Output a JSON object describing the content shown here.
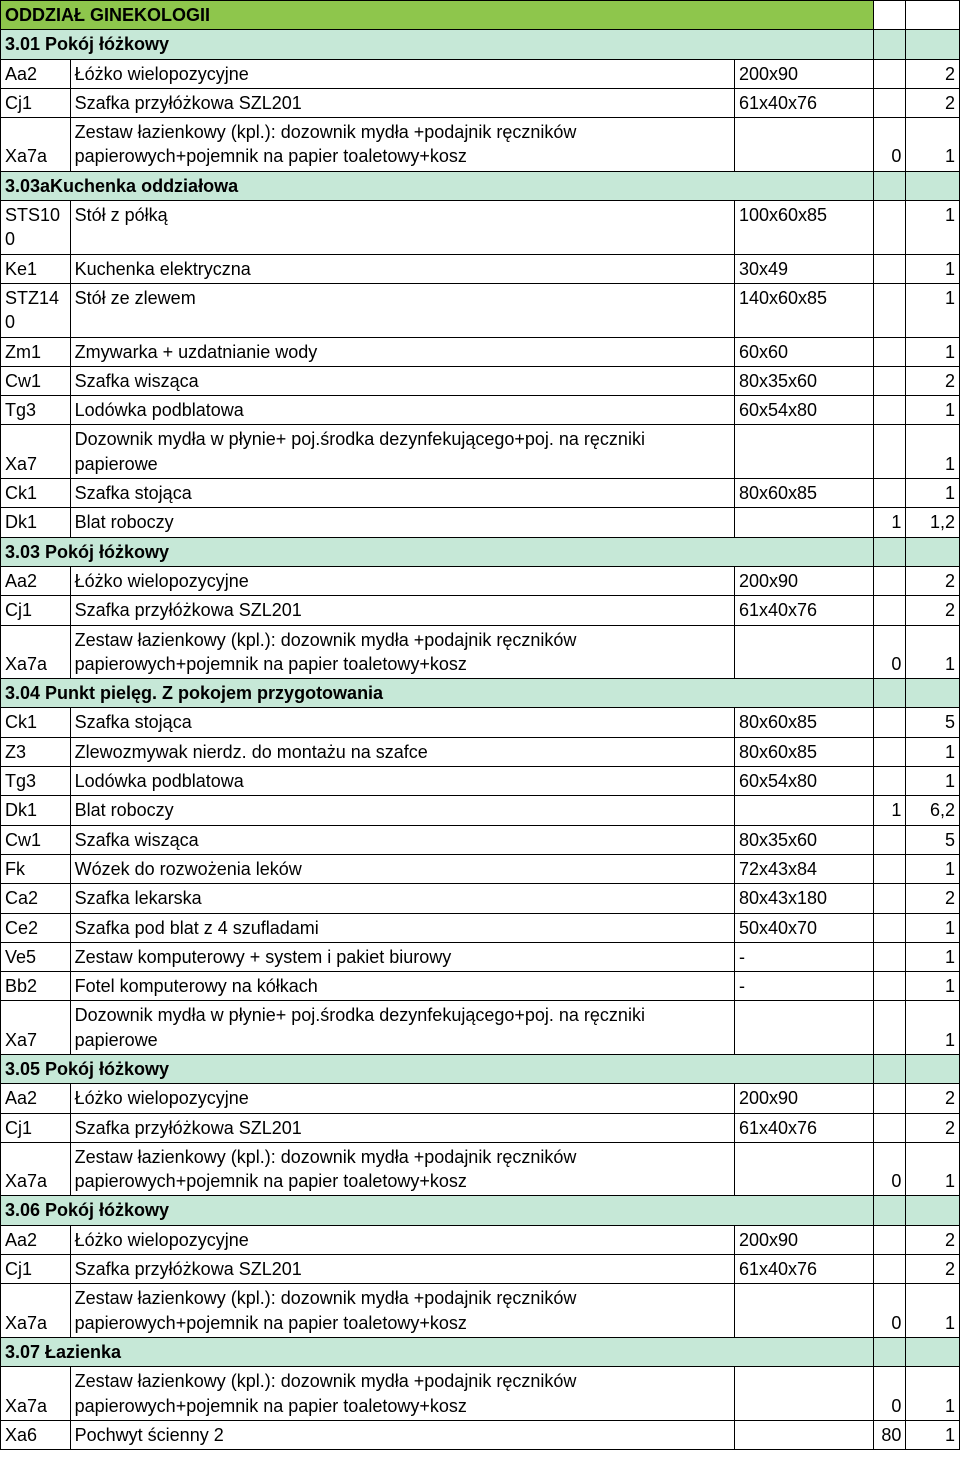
{
  "colors": {
    "dept_header_bg": "#8ec64c",
    "section_header_bg": "#c6e8d7",
    "border": "#000000",
    "text": "#000000"
  },
  "dept_title": "ODDZIAŁ GINEKOLOGII",
  "sections": [
    {
      "title": "3.01 Pokój łóżkowy",
      "rows": [
        {
          "code": "Aa2",
          "desc": "Łóżko wielopozycyjne",
          "dim": "200x90",
          "c4": "",
          "qty": "2"
        },
        {
          "code": "Cj1",
          "desc": "Szafka przyłóżkowa SZL201",
          "dim": "61x40x76",
          "c4": "",
          "qty": "2"
        },
        {
          "code": "Xa7a",
          "desc": "Zestaw łazienkowy (kpl.): dozownik mydła +podajnik ręczników papierowych+pojemnik na papier toaletowy+kosz",
          "dim": "",
          "c4": "0",
          "qty": "1"
        }
      ]
    },
    {
      "title": "3.03aKuchenka oddziałowa",
      "rows": [
        {
          "code": "STS10\n0",
          "desc": "Stół z półką",
          "dim": "100x60x85",
          "c4": "",
          "qty": "1"
        },
        {
          "code": "Ke1",
          "desc": "Kuchenka elektryczna",
          "dim": "30x49",
          "c4": "",
          "qty": "1"
        },
        {
          "code": "STZ14\n0",
          "desc": "Stół ze zlewem",
          "dim": "140x60x85",
          "c4": "",
          "qty": "1"
        },
        {
          "code": "Zm1",
          "desc": "Zmywarka + uzdatnianie wody",
          "dim": "60x60",
          "c4": "",
          "qty": "1"
        },
        {
          "code": "Cw1",
          "desc": "Szafka  wisząca",
          "dim": "80x35x60",
          "c4": "",
          "qty": "2"
        },
        {
          "code": "Tg3",
          "desc": "Lodówka podblatowa",
          "dim": "60x54x80",
          "c4": "",
          "qty": "1"
        },
        {
          "code": "Xa7",
          "desc": "Dozownik mydła w płynie+ poj.środka dezynfekującego+poj. na ręczniki papierowe",
          "dim": "",
          "c4": "",
          "qty": "1"
        },
        {
          "code": "Ck1",
          "desc": "Szafka  stojąca",
          "dim": "80x60x85",
          "c4": "",
          "qty": "1"
        },
        {
          "code": "Dk1",
          "desc": "Blat roboczy",
          "dim": "",
          "c4": "1",
          "qty": "1,2"
        }
      ]
    },
    {
      "title": "3.03 Pokój łóżkowy",
      "rows": [
        {
          "code": "Aa2",
          "desc": "Łóżko wielopozycyjne",
          "dim": "200x90",
          "c4": "",
          "qty": "2"
        },
        {
          "code": "Cj1",
          "desc": "Szafka przyłóżkowa SZL201",
          "dim": "61x40x76",
          "c4": "",
          "qty": "2"
        },
        {
          "code": "Xa7a",
          "desc": "Zestaw łazienkowy (kpl.): dozownik mydła +podajnik ręczników papierowych+pojemnik na papier toaletowy+kosz",
          "dim": "",
          "c4": "0",
          "qty": "1"
        }
      ]
    },
    {
      "title": "3.04 Punkt pielęg. Z pokojem przygotowania",
      "rows": [
        {
          "code": "Ck1",
          "desc": "Szafka  stojąca",
          "dim": "80x60x85",
          "c4": "",
          "qty": "5"
        },
        {
          "code": "Z3",
          "desc": "Zlewozmywak nierdz. do montażu na szafce",
          "dim": "80x60x85",
          "c4": "",
          "qty": "1"
        },
        {
          "code": "Tg3",
          "desc": "Lodówka podblatowa",
          "dim": "60x54x80",
          "c4": "",
          "qty": "1"
        },
        {
          "code": "Dk1",
          "desc": "Blat roboczy",
          "dim": "",
          "c4": "1",
          "qty": "6,2"
        },
        {
          "code": "Cw1",
          "desc": "Szafka  wisząca",
          "dim": "80x35x60",
          "c4": "",
          "qty": "5"
        },
        {
          "code": "Fk",
          "desc": "Wózek do rozwożenia leków",
          "dim": "72x43x84",
          "c4": "",
          "qty": "1"
        },
        {
          "code": "Ca2",
          "desc": "Szafka lekarska",
          "dim": "80x43x180",
          "c4": "",
          "qty": "2"
        },
        {
          "code": "Ce2",
          "desc": "Szafka pod blat z 4 szufladami",
          "dim": "50x40x70",
          "c4": "",
          "qty": "1"
        },
        {
          "code": "Ve5",
          "desc": "Zestaw komputerowy + system i pakiet biurowy",
          "dim": "-",
          "c4": "",
          "qty": "1"
        },
        {
          "code": "Bb2",
          "desc": "Fotel komputerowy na kółkach",
          "dim": "-",
          "c4": "",
          "qty": "1"
        },
        {
          "code": "Xa7",
          "desc": "Dozownik mydła w płynie+ poj.środka dezynfekującego+poj. na ręczniki papierowe",
          "dim": "",
          "c4": "",
          "qty": "1"
        }
      ]
    },
    {
      "title": "3.05 Pokój łóżkowy",
      "rows": [
        {
          "code": "Aa2",
          "desc": "Łóżko wielopozycyjne",
          "dim": "200x90",
          "c4": "",
          "qty": "2"
        },
        {
          "code": "Cj1",
          "desc": "Szafka przyłóżkowa SZL201",
          "dim": "61x40x76",
          "c4": "",
          "qty": "2"
        },
        {
          "code": "Xa7a",
          "desc": "Zestaw łazienkowy (kpl.): dozownik mydła +podajnik ręczników papierowych+pojemnik na papier toaletowy+kosz",
          "dim": "",
          "c4": "0",
          "qty": "1"
        }
      ]
    },
    {
      "title": "3.06 Pokój łóżkowy",
      "rows": [
        {
          "code": "Aa2",
          "desc": "Łóżko wielopozycyjne",
          "dim": "200x90",
          "c4": "",
          "qty": "2"
        },
        {
          "code": "Cj1",
          "desc": "Szafka przyłóżkowa SZL201",
          "dim": "61x40x76",
          "c4": "",
          "qty": "2"
        },
        {
          "code": "Xa7a",
          "desc": "Zestaw łazienkowy (kpl.): dozownik mydła +podajnik ręczników papierowych+pojemnik na papier toaletowy+kosz",
          "dim": "",
          "c4": "0",
          "qty": "1"
        }
      ]
    },
    {
      "title": "3.07 Łazienka",
      "rows": [
        {
          "code": "Xa7a",
          "desc": "Zestaw łazienkowy (kpl.): dozownik mydła +podajnik ręczników papierowych+pojemnik na papier toaletowy+kosz",
          "dim": "",
          "c4": "0",
          "qty": "1"
        },
        {
          "code": "Xa6",
          "desc": "Pochwyt ścienny 2",
          "dim": "",
          "c4": "80",
          "qty": "1"
        }
      ]
    }
  ]
}
